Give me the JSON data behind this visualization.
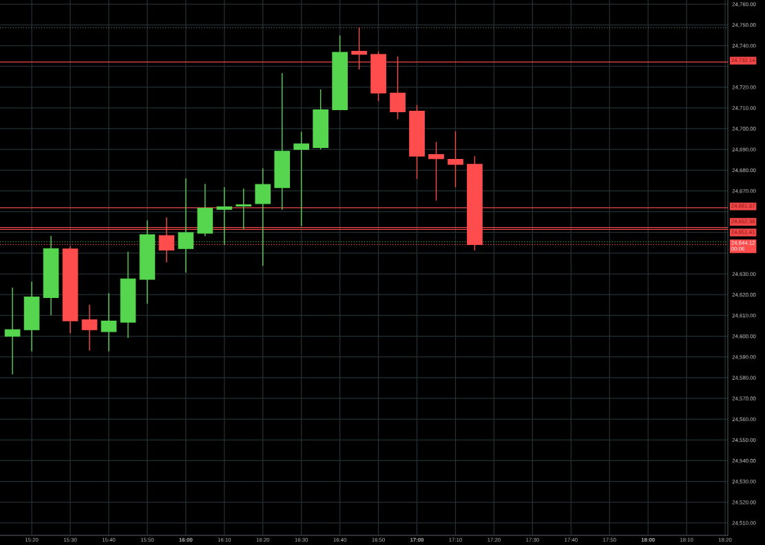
{
  "chart_data": {
    "type": "candlestick",
    "x": [
      15.25,
      15.3333,
      15.4167,
      15.5,
      15.5833,
      15.6667,
      15.75,
      15.8333,
      15.9167,
      16.0,
      16.0833,
      16.1667,
      16.25,
      16.3333,
      16.4167,
      16.5,
      16.5833,
      16.6667,
      16.75,
      16.8333,
      16.9167,
      17.0,
      17.0833,
      17.1667,
      17.25
    ],
    "ohlc": [
      [
        24599.9,
        24623.4,
        24581.6,
        24603.1
      ],
      [
        24603.1,
        24626.3,
        24592.7,
        24618.9
      ],
      [
        24618.6,
        24648.3,
        24610.0,
        24642.2
      ],
      [
        24642.0,
        24643.4,
        24601.4,
        24607.4
      ],
      [
        24607.9,
        24615.2,
        24593.0,
        24603.1
      ],
      [
        24602.2,
        24620.7,
        24592.7,
        24607.3
      ],
      [
        24606.7,
        24640.7,
        24599.2,
        24627.6
      ],
      [
        24627.4,
        24655.8,
        24615.7,
        24648.9
      ],
      [
        24648.5,
        24657.2,
        24635.6,
        24641.5
      ],
      [
        24642.2,
        24676.0,
        24630.6,
        24649.9
      ],
      [
        24649.6,
        24673.4,
        24648.2,
        24661.7
      ],
      [
        24661.1,
        24671.8,
        24644.0,
        24662.3
      ],
      [
        24662.7,
        24671.1,
        24651.5,
        24663.3
      ],
      [
        24663.9,
        24680.8,
        24633.9,
        24673.1
      ],
      [
        24671.6,
        24726.8,
        24660.9,
        24689.1
      ],
      [
        24690.0,
        24698.5,
        24653.0,
        24692.7
      ],
      [
        24690.9,
        24718.9,
        24690.0,
        24709.1
      ],
      [
        24709.1,
        24744.9,
        24709.1,
        24736.8
      ],
      [
        24737.3,
        24748.7,
        24728.5,
        24735.8
      ],
      [
        24735.8,
        24737.2,
        24713.3,
        24717.2
      ],
      [
        24717.1,
        24734.8,
        24704.6,
        24708.1
      ],
      [
        24708.4,
        24711.4,
        24675.8,
        24686.7
      ],
      [
        24687.5,
        24693.6,
        24665.3,
        24685.5
      ],
      [
        24685.2,
        24698.7,
        24671.8,
        24682.8
      ],
      [
        24682.8,
        24686.7,
        24641.3,
        24644.12
      ]
    ],
    "colors": [
      "#56d64f",
      "#56d64f",
      "#56d64f",
      "#ff4c4c",
      "#ff4c4c",
      "#56d64f",
      "#56d64f",
      "#56d64f",
      "#ff4c4c",
      "#56d64f",
      "#56d64f",
      "#56d64f",
      "#56d64f",
      "#56d64f",
      "#56d64f",
      "#56d64f",
      "#56d64f",
      "#56d64f",
      "#ff4c4c",
      "#ff4c4c",
      "#ff4c4c",
      "#ff4c4c",
      "#ff4c4c",
      "#ff4c4c",
      "#ff4c4c"
    ],
    "xlim": [
      15.196,
      18.345
    ],
    "ylim": [
      24504,
      24762
    ],
    "xticks": [
      {
        "value": 15.3333,
        "label": "15:20"
      },
      {
        "value": 15.5,
        "label": "15:30"
      },
      {
        "value": 15.6667,
        "label": "15:40"
      },
      {
        "value": 15.8333,
        "label": "15:50"
      },
      {
        "value": 16.0,
        "label": "16:00"
      },
      {
        "value": 16.1667,
        "label": "16:10"
      },
      {
        "value": 16.3333,
        "label": "16:20"
      },
      {
        "value": 16.5,
        "label": "16:30"
      },
      {
        "value": 16.6667,
        "label": "16:40"
      },
      {
        "value": 16.8333,
        "label": "16:50"
      },
      {
        "value": 17.0,
        "label": "17:00"
      },
      {
        "value": 17.1667,
        "label": "17:10"
      },
      {
        "value": 17.3333,
        "label": "17:20"
      },
      {
        "value": 17.5,
        "label": "17:30"
      },
      {
        "value": 17.6667,
        "label": "17:40"
      },
      {
        "value": 17.8333,
        "label": "17:50"
      },
      {
        "value": 18.0,
        "label": "18:00"
      },
      {
        "value": 18.1667,
        "label": "18:10"
      },
      {
        "value": 18.3333,
        "label": "18:20"
      }
    ],
    "yticks": [
      {
        "value": 24510,
        "label": "24,510.00"
      },
      {
        "value": 24520,
        "label": "24,520.00"
      },
      {
        "value": 24530,
        "label": "24,530.00"
      },
      {
        "value": 24540,
        "label": "24,540.00"
      },
      {
        "value": 24550,
        "label": "24,550.00"
      },
      {
        "value": 24560,
        "label": "24,560.00"
      },
      {
        "value": 24570,
        "label": "24,570.00"
      },
      {
        "value": 24580,
        "label": "24,580.00"
      },
      {
        "value": 24590,
        "label": "24,590.00"
      },
      {
        "value": 24600,
        "label": "24,600.00"
      },
      {
        "value": 24610,
        "label": "24,610.00"
      },
      {
        "value": 24620,
        "label": "24,620.00"
      },
      {
        "value": 24630,
        "label": "24,630.00"
      },
      {
        "value": 24640,
        "label": null
      },
      {
        "value": 24650,
        "label": null
      },
      {
        "value": 24660,
        "label": null
      },
      {
        "value": 24670,
        "label": "24,670.00"
      },
      {
        "value": 24680,
        "label": "24,680.00"
      },
      {
        "value": 24690,
        "label": "24,690.00"
      },
      {
        "value": 24700,
        "label": "24,700.00"
      },
      {
        "value": 24710,
        "label": "24,710.00"
      },
      {
        "value": 24720,
        "label": "24,720.00"
      },
      {
        "value": 24730,
        "label": null
      },
      {
        "value": 24740,
        "label": "24,740.00"
      },
      {
        "value": 24750,
        "label": "24,750.00"
      },
      {
        "value": 24760,
        "label": "24,760.00"
      }
    ],
    "ref_lines": [
      {
        "axis": "y",
        "value": 24748.7,
        "color": "#6a6a6a",
        "line_style": "dotted"
      },
      {
        "axis": "y",
        "value": 24732.14,
        "label": "24,732.14",
        "color": "#f04848",
        "line_style": "solid"
      },
      {
        "axis": "y",
        "value": 24661.87,
        "label": "24,661.87",
        "color": "#f04848",
        "line_style": "solid"
      },
      {
        "axis": "y",
        "value": 24652.38,
        "label": "24,652.38",
        "color": "#f04848",
        "line_style": "solid"
      },
      {
        "axis": "y",
        "value": 24651.41,
        "label": "24,651.41",
        "color": "#f04848",
        "line_style": "solid"
      },
      {
        "axis": "y",
        "value": 24645.5,
        "color": "#3c9a3c",
        "line_style": "dotted"
      },
      {
        "axis": "y",
        "value": 24644.12,
        "label": "24,644.12\n00:06",
        "color": "#ff4c4c",
        "line_style": "dotted"
      }
    ],
    "grid": true
  }
}
